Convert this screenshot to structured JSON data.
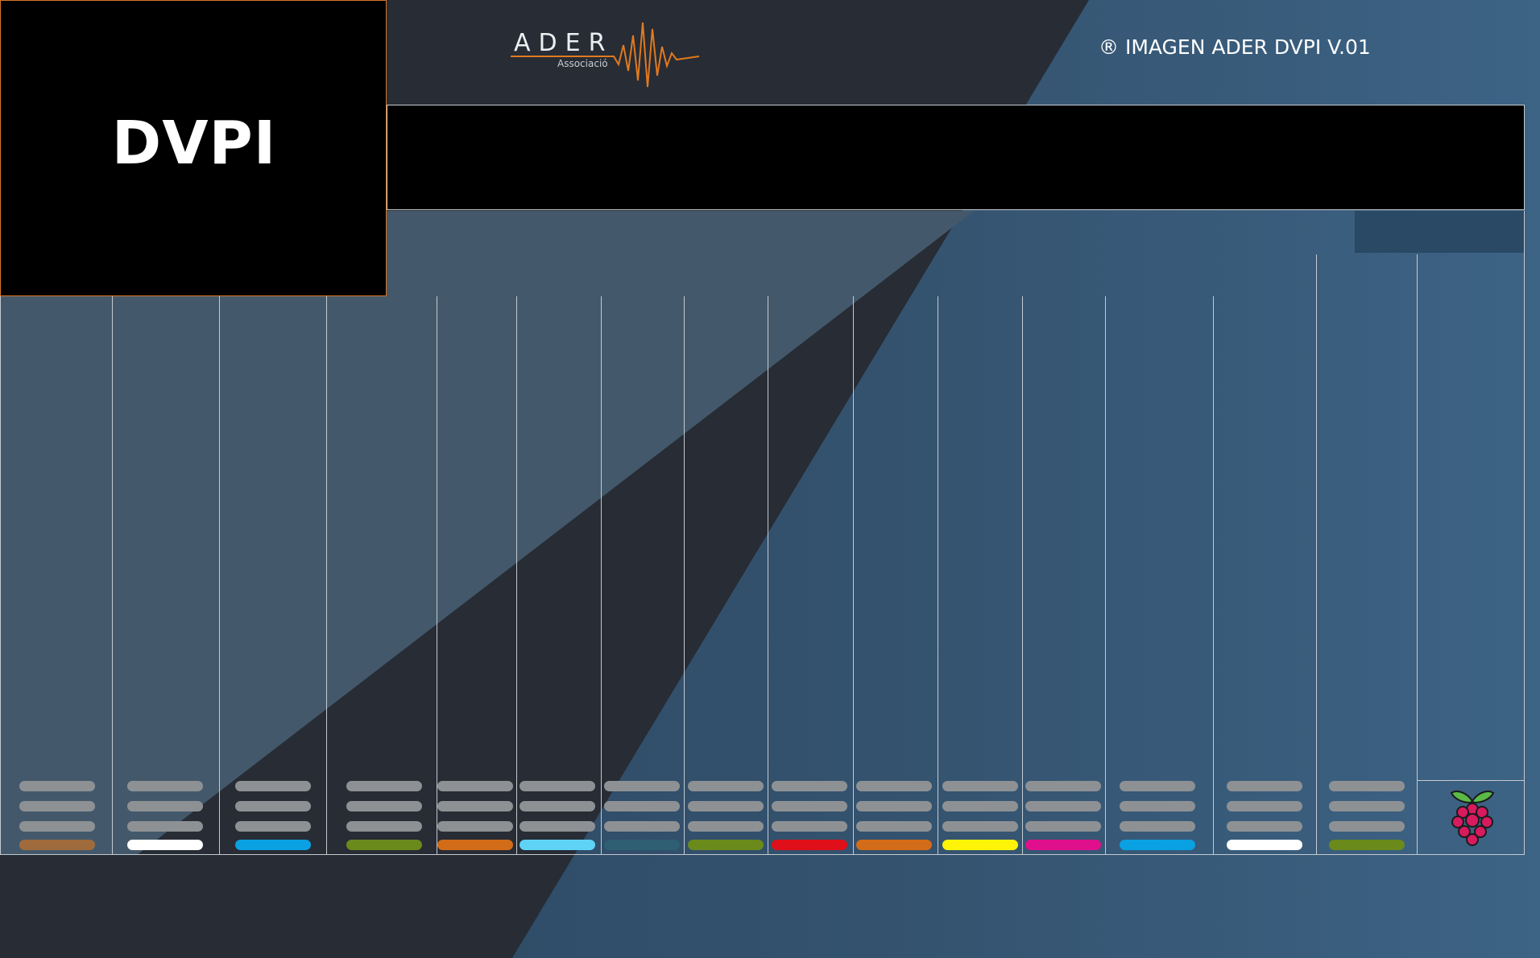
{
  "header": {
    "logo_text": "DVPI",
    "brand": {
      "name": "ADER",
      "subtitle": "Associació",
      "accent": "#e07a1f"
    },
    "version": "® IMAGEN ADER DVPI V.01"
  },
  "colors": {
    "background": "#272c35",
    "panel": "#43596b",
    "accent_blue": "#34536f",
    "logo_border": "#d7752a"
  },
  "channels": [
    {
      "color": "#a06b3c"
    },
    {
      "color": "#ffffff"
    },
    {
      "color": "#0aa1e2"
    },
    {
      "color": "#6a8a1c"
    },
    {
      "color": "#d36c18"
    },
    {
      "color": "#5fd3f6"
    },
    {
      "color": "#2e5f72"
    },
    {
      "color": "#6a8a1c"
    },
    {
      "color": "#e0101a"
    },
    {
      "color": "#d36c18"
    },
    {
      "color": "#fdf407"
    },
    {
      "color": "#e0108c"
    },
    {
      "color": "#0aa1e2"
    },
    {
      "color": "#ffffff"
    },
    {
      "color": "#6a8a1c"
    }
  ],
  "footer_icon": "raspberry-pi-icon"
}
